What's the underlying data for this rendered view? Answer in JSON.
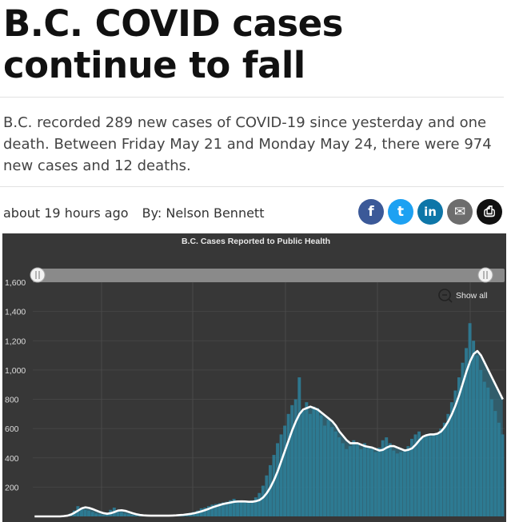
{
  "article": {
    "headline": "B.C. COVID cases continue to fall",
    "deck": "B.C. recorded 289 new cases of COVID-19 since yesterday and one death. Between Friday May 21 and Monday May 24, there were 974 new cases and 12 deaths.",
    "time_ago": "about 19 hours ago",
    "byline": "By: Nelson Bennett"
  },
  "share": [
    {
      "name": "facebook",
      "glyph": "f",
      "color": "#3b5998"
    },
    {
      "name": "twitter",
      "glyph": "t",
      "color": "#1da1f2"
    },
    {
      "name": "linkedin",
      "glyph": "in",
      "color": "#0e76a8"
    },
    {
      "name": "email",
      "glyph": "✉",
      "color": "#6d6d6d"
    },
    {
      "name": "print",
      "glyph": "⎙",
      "color": "#111111"
    }
  ],
  "chart_data": {
    "type": "area",
    "title": "B.C. Cases Reported to Public Health",
    "show_all_label": "Show all",
    "xlabel": "",
    "ylabel": "",
    "ylim": [
      0,
      1600
    ],
    "yticks": [
      200,
      400,
      600,
      800,
      1000,
      1200,
      1400,
      1600
    ],
    "grid": true,
    "colors": {
      "bars": "#2e7d97",
      "line": "#ffffff",
      "background": "#373737"
    },
    "series": [
      {
        "kind": "daily",
        "values": [
          0,
          0,
          0,
          0,
          0,
          0,
          0,
          0,
          0,
          0,
          20,
          40,
          70,
          60,
          45,
          40,
          30,
          20,
          15,
          10,
          25,
          45,
          60,
          40,
          30,
          20,
          15,
          10,
          8,
          6,
          5,
          5,
          5,
          5,
          5,
          5,
          5,
          6,
          8,
          10,
          12,
          15,
          20,
          25,
          30,
          40,
          55,
          60,
          70,
          80,
          85,
          90,
          95,
          100,
          110,
          120,
          110,
          105,
          100,
          100,
          110,
          130,
          160,
          210,
          280,
          350,
          420,
          500,
          560,
          620,
          700,
          760,
          800,
          950,
          720,
          780,
          700,
          750,
          740,
          690,
          620,
          660,
          610,
          580,
          540,
          500,
          460,
          480,
          520,
          500,
          460,
          500,
          480,
          460,
          440,
          470,
          520,
          540,
          500,
          450,
          430,
          440,
          460,
          480,
          530,
          560,
          580,
          540,
          560,
          550,
          560,
          570,
          600,
          640,
          700,
          780,
          860,
          950,
          1050,
          1150,
          1320,
          1200,
          1100,
          1000,
          920,
          880,
          800,
          720,
          640,
          560
        ]
      },
      {
        "kind": "7-day average",
        "values": [
          0,
          0,
          0,
          0,
          0,
          0,
          0,
          0,
          2,
          5,
          12,
          25,
          40,
          55,
          62,
          58,
          50,
          40,
          30,
          22,
          18,
          22,
          30,
          40,
          42,
          38,
          30,
          22,
          15,
          10,
          7,
          6,
          5,
          5,
          5,
          5,
          5,
          5,
          6,
          7,
          9,
          11,
          14,
          17,
          22,
          28,
          35,
          43,
          52,
          62,
          70,
          78,
          85,
          90,
          95,
          100,
          102,
          103,
          102,
          100,
          100,
          104,
          112,
          130,
          160,
          200,
          250,
          310,
          380,
          450,
          520,
          590,
          650,
          700,
          730,
          740,
          750,
          740,
          730,
          710,
          690,
          670,
          650,
          620,
          580,
          550,
          520,
          500,
          500,
          500,
          490,
          480,
          475,
          470,
          460,
          450,
          455,
          470,
          480,
          480,
          470,
          460,
          450,
          455,
          465,
          490,
          520,
          545,
          555,
          560,
          560,
          565,
          580,
          610,
          650,
          700,
          760,
          830,
          910,
          990,
          1060,
          1110,
          1130,
          1100,
          1050,
          1000,
          950,
          900,
          850,
          800
        ]
      }
    ]
  }
}
